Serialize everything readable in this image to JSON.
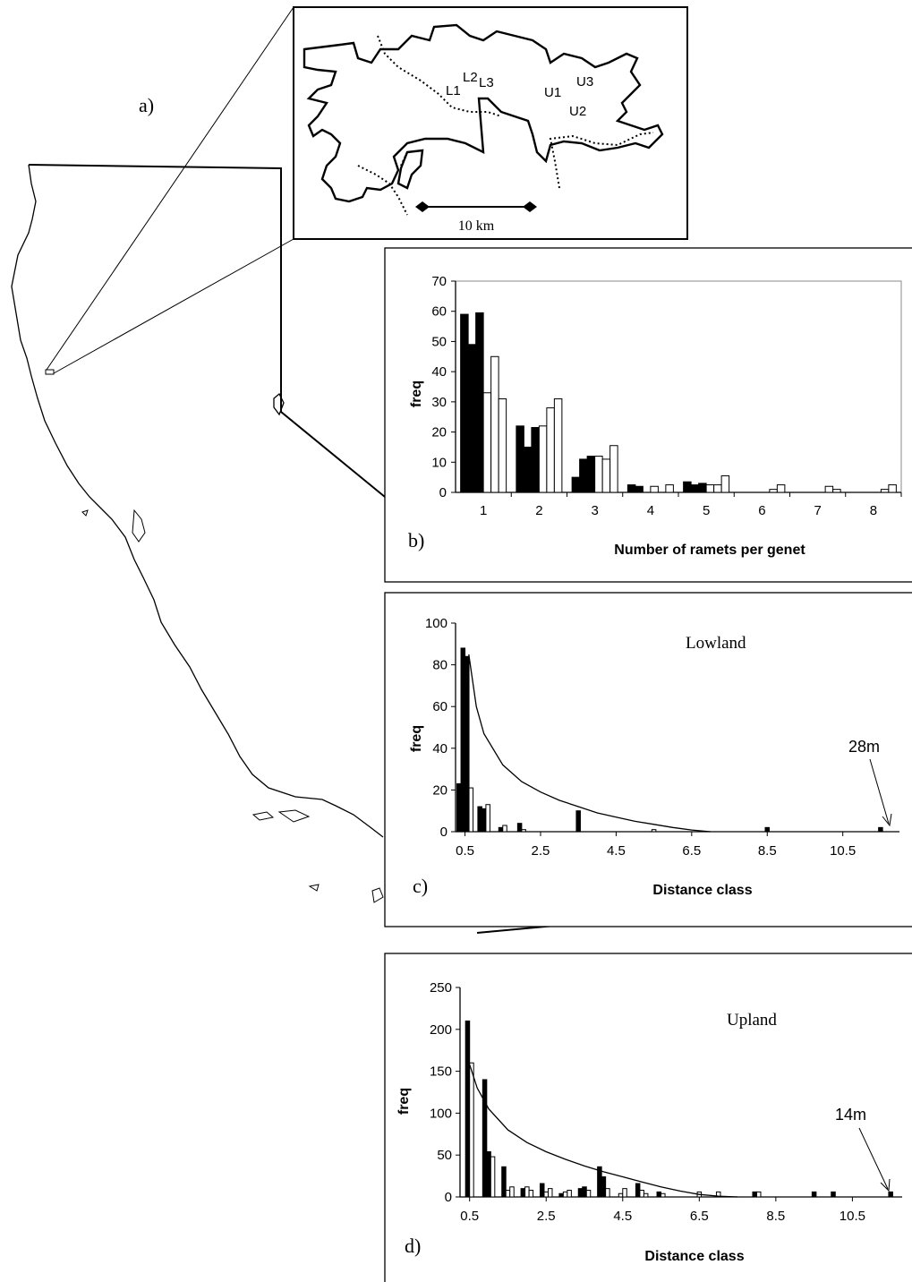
{
  "panel_letters": {
    "a": "a)",
    "b": "b)",
    "c": "c)",
    "d": "d)"
  },
  "inset_map": {
    "sites": [
      "L1",
      "L2",
      "L3",
      "U1",
      "U2",
      "U3"
    ],
    "scale_label": "10 km"
  },
  "chart_data": [
    {
      "id": "b",
      "type": "bar",
      "xlabel": "Number of ramets per genet",
      "ylabel": "freq",
      "ylim": [
        0,
        70
      ],
      "yticks": [
        0,
        10,
        20,
        30,
        40,
        50,
        60,
        70
      ],
      "categories": [
        "1",
        "2",
        "3",
        "4",
        "5",
        "6",
        "7",
        "8"
      ],
      "grid": false,
      "series": [
        {
          "fill": "#000000",
          "values": [
            59,
            22,
            5,
            2.5,
            3.5,
            0,
            0,
            0
          ]
        },
        {
          "fill": "#000000",
          "values": [
            49,
            15,
            11,
            2,
            2.5,
            0,
            0,
            0
          ]
        },
        {
          "fill": "#000000",
          "values": [
            59.5,
            21.5,
            12,
            0,
            3,
            0,
            0,
            0
          ]
        },
        {
          "fill": "#ffffff",
          "values": [
            33,
            22,
            12,
            2,
            2.5,
            0,
            0,
            0
          ]
        },
        {
          "fill": "#ffffff",
          "values": [
            45,
            28,
            11,
            0,
            2.5,
            1,
            2,
            1
          ]
        },
        {
          "fill": "#ffffff",
          "values": [
            31,
            31,
            15.5,
            2.5,
            5.5,
            2.5,
            1,
            2.5
          ]
        }
      ]
    },
    {
      "id": "c",
      "type": "bar",
      "title": "Lowland",
      "xlabel": "Distance class",
      "ylabel": "freq",
      "ylim": [
        0,
        100
      ],
      "yticks": [
        0,
        20,
        40,
        60,
        80,
        100
      ],
      "xticks": [
        "0.5",
        "2.5",
        "4.5",
        "6.5",
        "8.5",
        "10.5"
      ],
      "xlim": [
        0.25,
        12.0
      ],
      "annotation": "28m",
      "bars": [
        {
          "x": 0.5,
          "y": 23,
          "fill": "#000000"
        },
        {
          "x": 0.5,
          "y": 88,
          "fill": "#000000"
        },
        {
          "x": 0.5,
          "y": 84,
          "fill": "#000000"
        },
        {
          "x": 0.5,
          "y": 21,
          "fill": "#ffffff"
        },
        {
          "x": 1.0,
          "y": 12,
          "fill": "#000000"
        },
        {
          "x": 1.0,
          "y": 11,
          "fill": "#000000"
        },
        {
          "x": 1.0,
          "y": 13,
          "fill": "#ffffff"
        },
        {
          "x": 1.5,
          "y": 2,
          "fill": "#000000"
        },
        {
          "x": 1.5,
          "y": 3,
          "fill": "#ffffff"
        },
        {
          "x": 2.0,
          "y": 4,
          "fill": "#000000"
        },
        {
          "x": 2.0,
          "y": 1,
          "fill": "#ffffff"
        },
        {
          "x": 3.5,
          "y": 10,
          "fill": "#000000"
        },
        {
          "x": 5.5,
          "y": 1,
          "fill": "#ffffff"
        },
        {
          "x": 8.5,
          "y": 2,
          "fill": "#000000"
        },
        {
          "x": 11.5,
          "y": 2,
          "fill": "#000000"
        }
      ],
      "curve": {
        "x": [
          0.6,
          0.8,
          1.0,
          1.5,
          2.0,
          2.5,
          3.0,
          3.5,
          4.0,
          4.5,
          5.0,
          5.5,
          6.0,
          6.5,
          7.0
        ],
        "y": [
          85,
          60,
          47,
          32,
          24,
          19,
          15,
          12,
          9,
          7,
          5,
          3.5,
          2,
          0.8,
          0
        ]
      }
    },
    {
      "id": "d",
      "type": "bar",
      "title": "Upland",
      "xlabel": "Distance class",
      "ylabel": "freq",
      "ylim": [
        0,
        250
      ],
      "yticks": [
        0,
        50,
        100,
        150,
        200,
        250
      ],
      "xticks": [
        "0.5",
        "2.5",
        "4.5",
        "6.5",
        "8.5",
        "10.5"
      ],
      "xlim": [
        0.25,
        11.8
      ],
      "annotation": "14m",
      "bars": [
        {
          "x": 0.5,
          "y": 210,
          "fill": "#000000"
        },
        {
          "x": 0.5,
          "y": 160,
          "fill": "#ffffff"
        },
        {
          "x": 1.0,
          "y": 140,
          "fill": "#000000"
        },
        {
          "x": 1.0,
          "y": 54,
          "fill": "#000000"
        },
        {
          "x": 1.0,
          "y": 48,
          "fill": "#ffffff"
        },
        {
          "x": 1.5,
          "y": 36,
          "fill": "#000000"
        },
        {
          "x": 1.5,
          "y": 8,
          "fill": "#ffffff"
        },
        {
          "x": 1.5,
          "y": 12,
          "fill": "#ffffff"
        },
        {
          "x": 2.0,
          "y": 10,
          "fill": "#000000"
        },
        {
          "x": 2.0,
          "y": 12,
          "fill": "#ffffff"
        },
        {
          "x": 2.0,
          "y": 8,
          "fill": "#ffffff"
        },
        {
          "x": 2.5,
          "y": 16,
          "fill": "#000000"
        },
        {
          "x": 2.5,
          "y": 6,
          "fill": "#ffffff"
        },
        {
          "x": 2.5,
          "y": 10,
          "fill": "#ffffff"
        },
        {
          "x": 3.0,
          "y": 4,
          "fill": "#000000"
        },
        {
          "x": 3.0,
          "y": 6,
          "fill": "#ffffff"
        },
        {
          "x": 3.0,
          "y": 8,
          "fill": "#ffffff"
        },
        {
          "x": 3.5,
          "y": 10,
          "fill": "#000000"
        },
        {
          "x": 3.5,
          "y": 12,
          "fill": "#000000"
        },
        {
          "x": 3.5,
          "y": 8,
          "fill": "#ffffff"
        },
        {
          "x": 4.0,
          "y": 36,
          "fill": "#000000"
        },
        {
          "x": 4.0,
          "y": 24,
          "fill": "#000000"
        },
        {
          "x": 4.0,
          "y": 10,
          "fill": "#ffffff"
        },
        {
          "x": 4.5,
          "y": 4,
          "fill": "#ffffff"
        },
        {
          "x": 4.5,
          "y": 10,
          "fill": "#ffffff"
        },
        {
          "x": 5.0,
          "y": 16,
          "fill": "#000000"
        },
        {
          "x": 5.0,
          "y": 8,
          "fill": "#ffffff"
        },
        {
          "x": 5.0,
          "y": 4,
          "fill": "#ffffff"
        },
        {
          "x": 5.5,
          "y": 6,
          "fill": "#000000"
        },
        {
          "x": 5.5,
          "y": 4,
          "fill": "#ffffff"
        },
        {
          "x": 6.5,
          "y": 6,
          "fill": "#ffffff"
        },
        {
          "x": 7.0,
          "y": 6,
          "fill": "#ffffff"
        },
        {
          "x": 8.0,
          "y": 6,
          "fill": "#000000"
        },
        {
          "x": 8.0,
          "y": 6,
          "fill": "#ffffff"
        },
        {
          "x": 9.5,
          "y": 6,
          "fill": "#000000"
        },
        {
          "x": 10.0,
          "y": 6,
          "fill": "#000000"
        },
        {
          "x": 11.5,
          "y": 6,
          "fill": "#000000"
        }
      ],
      "curve": {
        "x": [
          0.5,
          0.7,
          1.0,
          1.5,
          2.0,
          2.5,
          3.0,
          3.5,
          4.0,
          4.5,
          5.0,
          5.5,
          6.0,
          6.5,
          7.0,
          7.5
        ],
        "y": [
          158,
          130,
          105,
          80,
          65,
          54,
          45,
          37,
          30,
          24,
          18,
          12,
          7,
          3,
          1,
          0
        ]
      }
    }
  ]
}
